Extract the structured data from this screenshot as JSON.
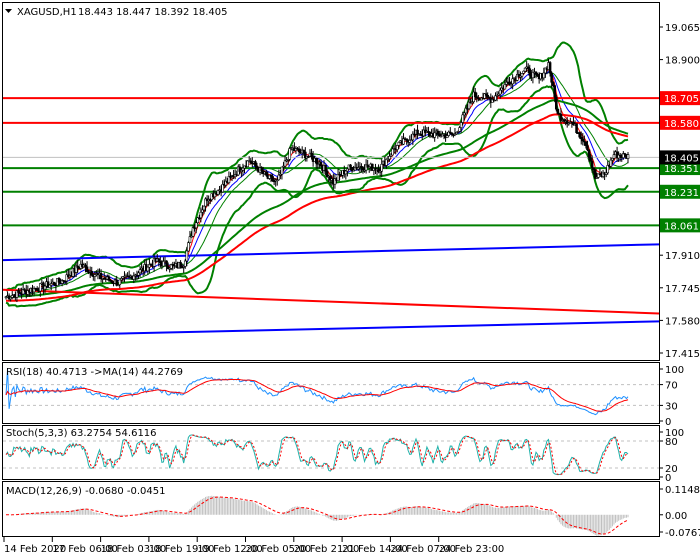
{
  "header": {
    "symbol": "XAGUSD,H1",
    "ohlc": "18.443 18.447 18.392 18.405"
  },
  "price_axis": [
    "19.065",
    "18.900",
    "17.910",
    "17.745",
    "17.580",
    "17.415"
  ],
  "price_range": [
    17.415,
    19.065
  ],
  "levels": [
    {
      "label": "18.705",
      "price": 18.705,
      "color": "#ff0000"
    },
    {
      "label": "18.580",
      "price": 18.58,
      "color": "#ff0000"
    },
    {
      "label": "18.351",
      "price": 18.351,
      "color": "#008000"
    },
    {
      "label": "18.231",
      "price": 18.231,
      "color": "#008000"
    },
    {
      "label": "18.061",
      "price": 18.061,
      "color": "#008000"
    }
  ],
  "current_price": {
    "label": "18.405",
    "price": 18.405
  },
  "trendlines": [
    {
      "color": "#0000ff",
      "from": 17.885,
      "to": 17.965
    },
    {
      "color": "#ff0000",
      "from": 17.735,
      "to": 17.615
    },
    {
      "color": "#0000ff",
      "from": 17.5,
      "to": 17.575
    }
  ],
  "price_path": [
    [
      0,
      17.7
    ],
    [
      6,
      17.74
    ],
    [
      12,
      17.78
    ],
    [
      16,
      17.86
    ],
    [
      20,
      17.8
    ],
    [
      24,
      17.77
    ],
    [
      28,
      17.82
    ],
    [
      32,
      17.88
    ],
    [
      36,
      17.85
    ],
    [
      38,
      17.87
    ],
    [
      40,
      18.05
    ],
    [
      43,
      18.2
    ],
    [
      46,
      18.25
    ],
    [
      50,
      18.35
    ],
    [
      52,
      18.39
    ],
    [
      56,
      18.3
    ],
    [
      58,
      18.28
    ],
    [
      61,
      18.45
    ],
    [
      64,
      18.42
    ],
    [
      67,
      18.38
    ],
    [
      70,
      18.28
    ],
    [
      73,
      18.35
    ],
    [
      76,
      18.36
    ],
    [
      80,
      18.35
    ],
    [
      83,
      18.45
    ],
    [
      88,
      18.53
    ],
    [
      92,
      18.52
    ],
    [
      96,
      18.52
    ],
    [
      100,
      18.72
    ],
    [
      104,
      18.7
    ],
    [
      107,
      18.78
    ],
    [
      111,
      18.85
    ],
    [
      114,
      18.8
    ],
    [
      116,
      18.88
    ],
    [
      118,
      18.62
    ],
    [
      121,
      18.58
    ],
    [
      124,
      18.48
    ],
    [
      126,
      18.3
    ],
    [
      128,
      18.32
    ],
    [
      130,
      18.42
    ],
    [
      133,
      18.41
    ]
  ],
  "rsi": {
    "label": "RSI(18) 40.4713  ->MA(14) 44.2769",
    "axis": [
      "100",
      "70",
      "30",
      "0"
    ]
  },
  "stoch": {
    "label": "Stoch(5,3,3) 63.2754 54.6116",
    "axis": [
      "100",
      "80",
      "20",
      "0"
    ]
  },
  "macd": {
    "label": "MACD(12,26,9) -0.0680 -0.0451",
    "axis": [
      "0.1148",
      "0.00",
      "-0.0767"
    ]
  },
  "time_axis": [
    "14 Feb 2020",
    "17 Feb 06:00",
    "18 Feb 03:00",
    "18 Feb 19:00",
    "19 Feb 12:00",
    "20 Feb 05:00",
    "20 Feb 21:00",
    "21 Feb 14:00",
    "24 Feb 07:00",
    "24 Feb 23:00"
  ]
}
